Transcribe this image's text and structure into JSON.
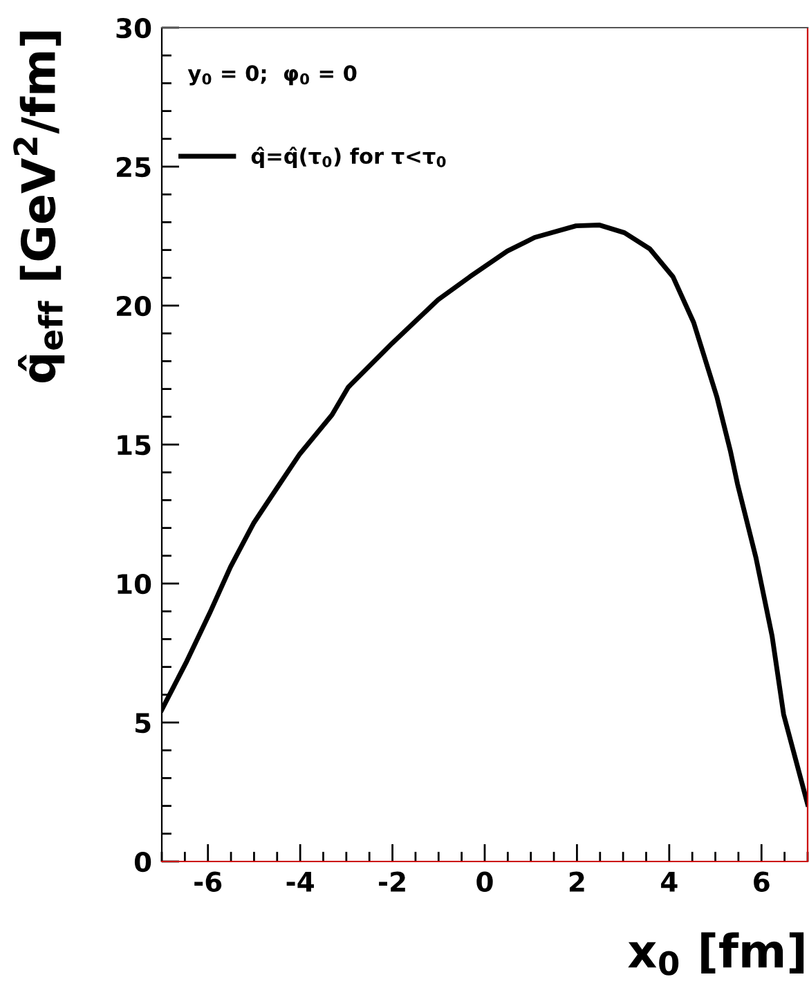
{
  "chart_data": {
    "type": "line",
    "xlabel": "x$_{0}$ [fm]",
    "ylabel": "q̂$_{eff}$ [GeV$^{2}$/fm]",
    "annotations": [
      "y$_{0}$ = 0;  φ$_{0}$ = 0"
    ],
    "x": [
      -7,
      -6.46,
      -5.96,
      -5.51,
      -5.01,
      -4.51,
      -4.01,
      -3.31,
      -2.96,
      -2.01,
      -1.01,
      -0.32,
      0.49,
      1.08,
      1.98,
      2.48,
      3.03,
      3.58,
      4.08,
      4.53,
      5.03,
      5.33,
      5.48,
      5.88,
      6.23,
      6.48,
      7.0
    ],
    "series": [
      {
        "name": "q̂=q̂(τ$_{0}$) for τ<τ$_{0}$",
        "color": "#000000",
        "values": [
          5.46,
          7.2,
          8.94,
          10.6,
          12.17,
          13.42,
          14.66,
          16.07,
          17.06,
          18.64,
          20.21,
          21.04,
          21.96,
          22.45,
          22.87,
          22.9,
          22.62,
          22.04,
          21.04,
          19.39,
          16.73,
          14.74,
          13.58,
          10.93,
          8.11,
          5.29,
          2.06
        ]
      }
    ],
    "xlim": [
      -7,
      7
    ],
    "xticks": [
      -6,
      -4,
      -2,
      0,
      2,
      4,
      6
    ],
    "ylim": [
      0,
      30
    ],
    "yticks": [
      0,
      5,
      10,
      15,
      20,
      25,
      30
    ],
    "legend": "top left",
    "grid": false,
    "marker": "none",
    "line_style": "solid"
  }
}
